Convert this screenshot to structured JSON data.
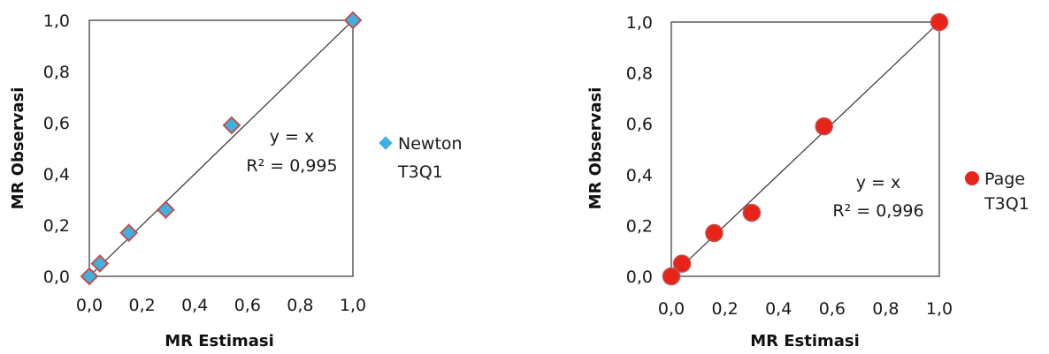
{
  "chart_data": [
    {
      "type": "scatter",
      "xlabel": "MR Estimasi",
      "ylabel": "MR Observasi",
      "xlim": [
        0,
        1
      ],
      "ylim": [
        0,
        1
      ],
      "xticks": [
        "0,0",
        "0,2",
        "0,4",
        "0,6",
        "0,8",
        "1,0"
      ],
      "yticks": [
        "0,0",
        "0,2",
        "0,4",
        "0,6",
        "0,8",
        "1,0"
      ],
      "grid": false,
      "legend_position": "right",
      "annotation": {
        "line1": "y = x",
        "line2": "R² = 0,995"
      },
      "series": [
        {
          "name_line1": "Newton",
          "name_line2": "T3Q1",
          "marker": "diamond",
          "color": "#3fb0e0",
          "edge_color": "#c0504d",
          "points": [
            {
              "x": 0.0,
              "y": 0.0
            },
            {
              "x": 0.04,
              "y": 0.05
            },
            {
              "x": 0.15,
              "y": 0.17
            },
            {
              "x": 0.29,
              "y": 0.26
            },
            {
              "x": 0.54,
              "y": 0.59
            },
            {
              "x": 1.0,
              "y": 1.0
            }
          ]
        }
      ],
      "fit_line": "y = x"
    },
    {
      "type": "scatter",
      "xlabel": "MR Estimasi",
      "ylabel": "MR Observasi",
      "xlim": [
        0,
        1
      ],
      "ylim": [
        0,
        1
      ],
      "xticks": [
        "0,0",
        "0,2",
        "0,4",
        "0,6",
        "0,8",
        "1,0"
      ],
      "yticks": [
        "0,0",
        "0,2",
        "0,4",
        "0,6",
        "0,8",
        "1,0"
      ],
      "grid": false,
      "legend_position": "right",
      "annotation": {
        "line1": "y = x",
        "line2": "R² = 0,996"
      },
      "series": [
        {
          "name_line1": "Page",
          "name_line2": "T3Q1",
          "marker": "circle",
          "color": "#e8231a",
          "edge_color": "#c0504d",
          "points": [
            {
              "x": 0.0,
              "y": 0.0
            },
            {
              "x": 0.04,
              "y": 0.05
            },
            {
              "x": 0.16,
              "y": 0.17
            },
            {
              "x": 0.3,
              "y": 0.25
            },
            {
              "x": 0.57,
              "y": 0.59
            },
            {
              "x": 1.0,
              "y": 1.0
            }
          ]
        }
      ],
      "fit_line": "y = x"
    }
  ]
}
